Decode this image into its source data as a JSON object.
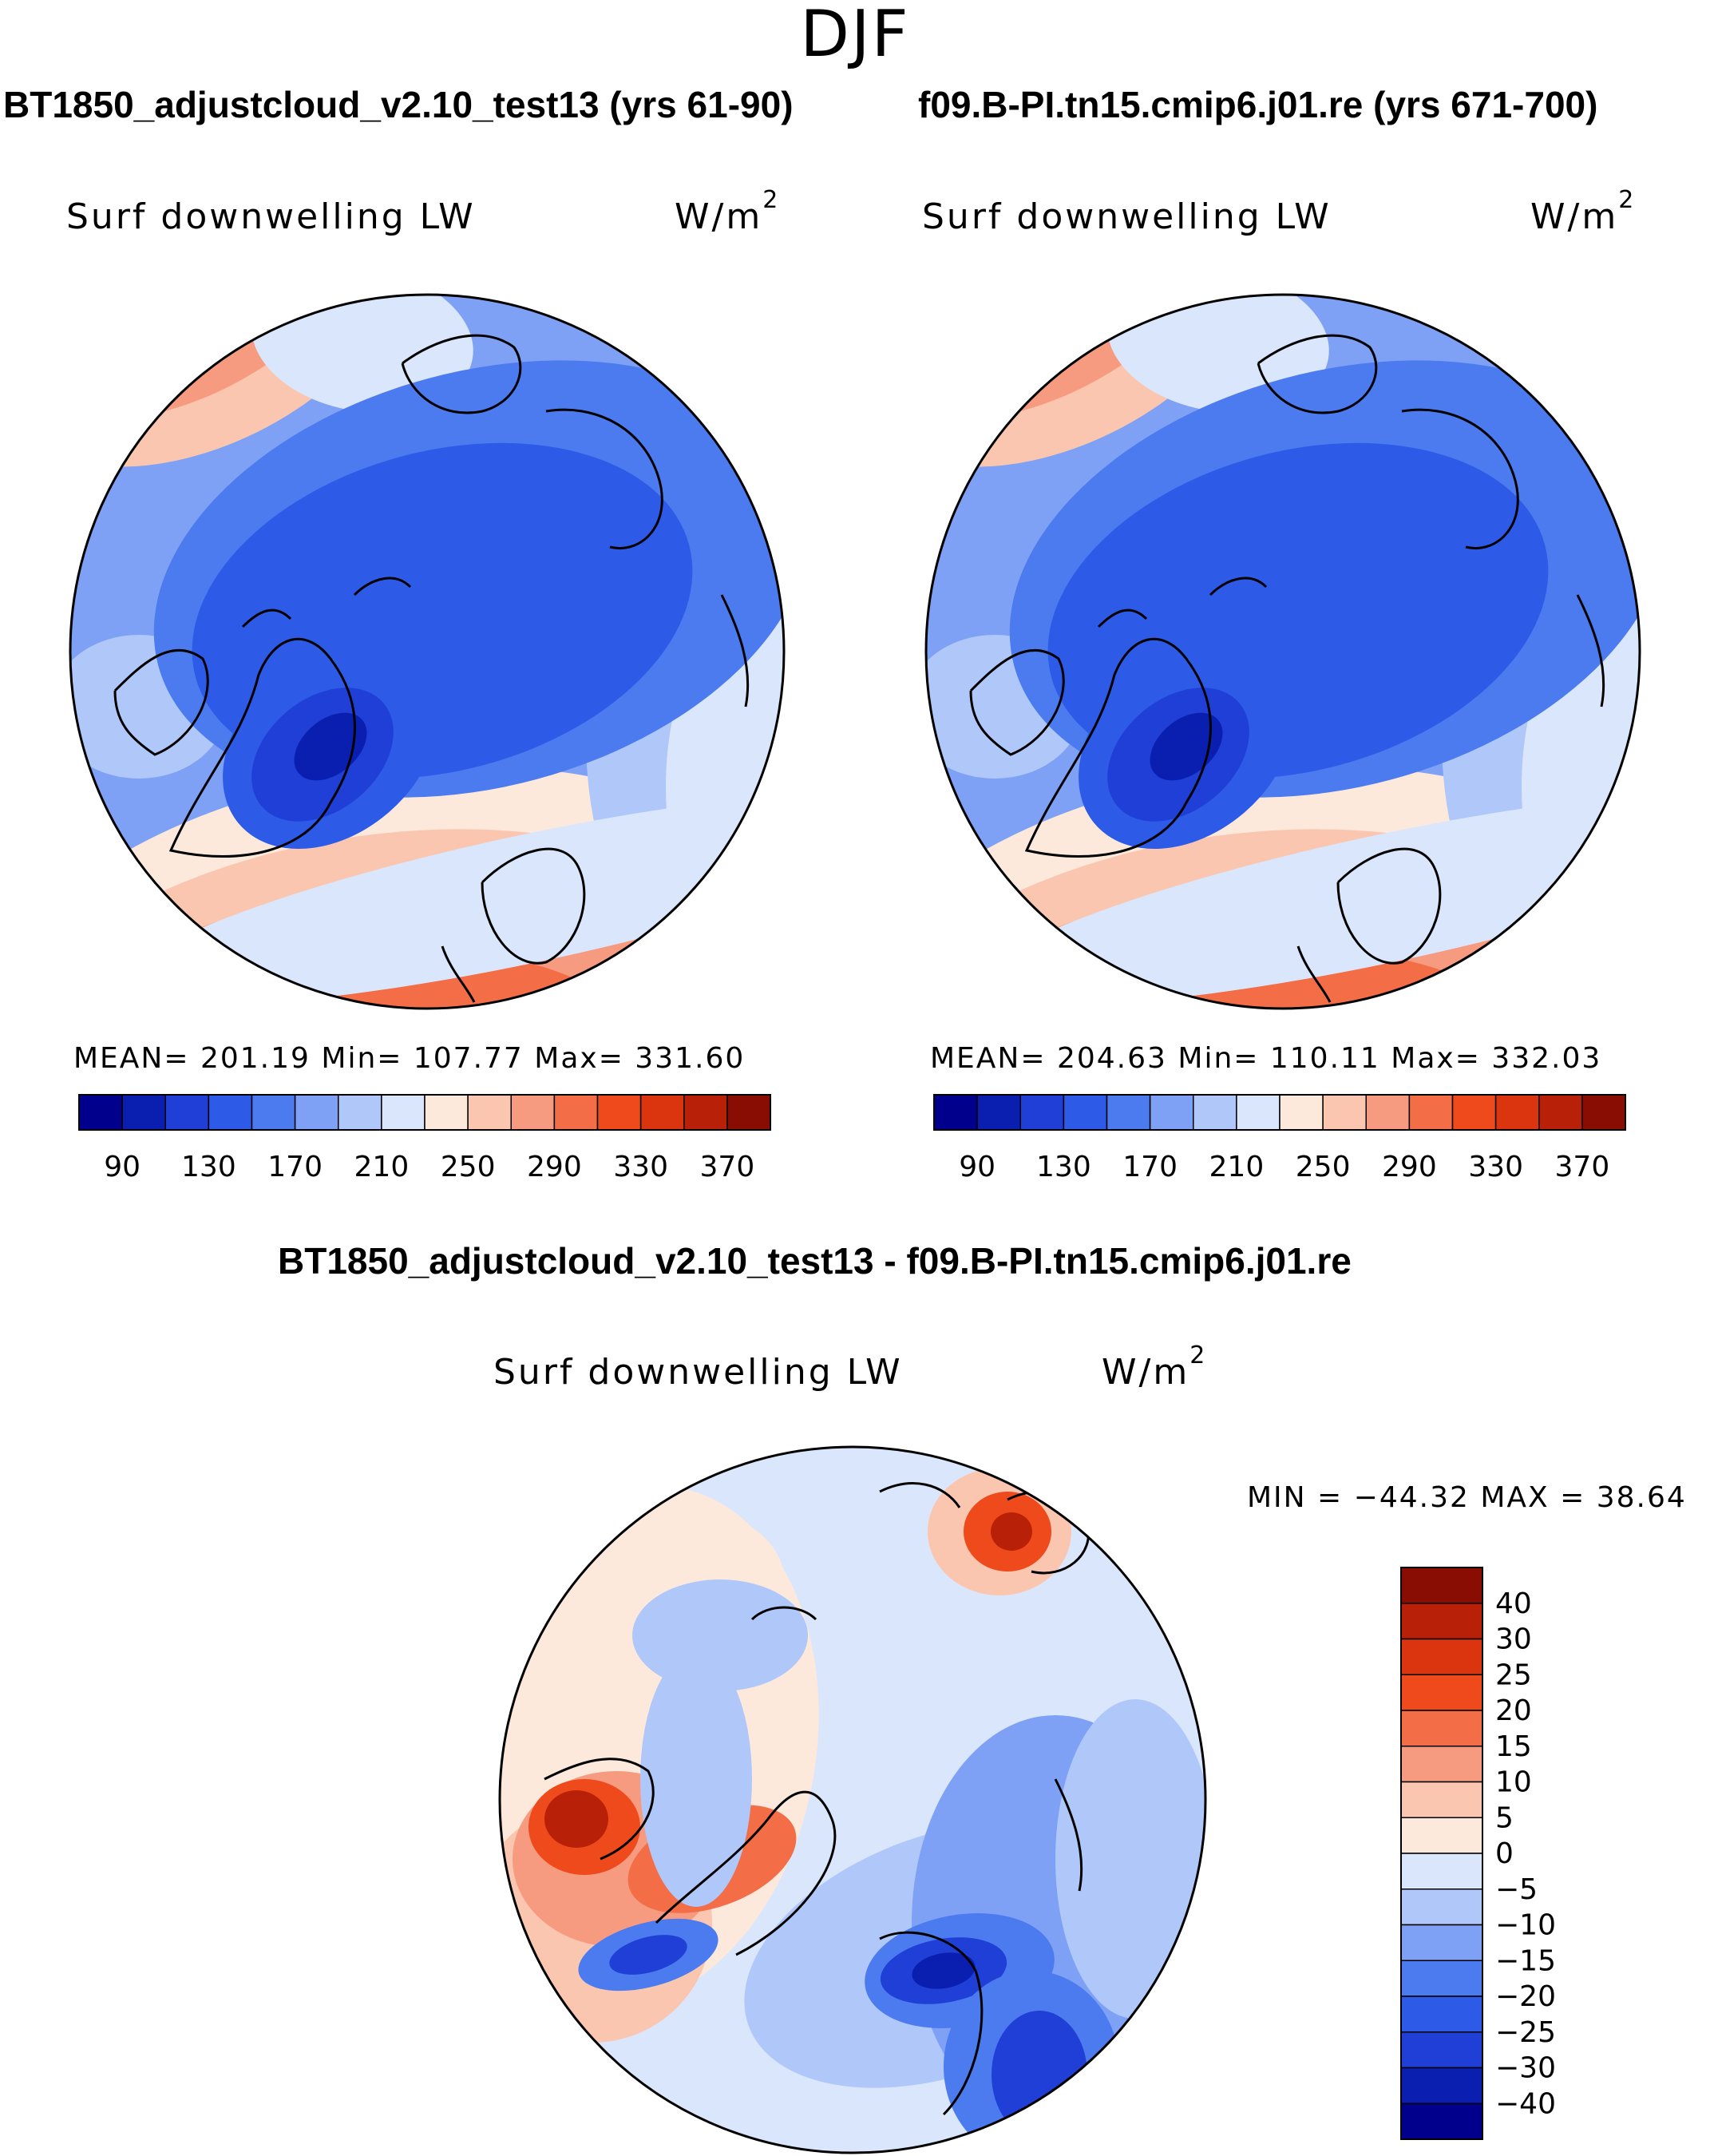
{
  "season": "DJF",
  "panels": [
    {
      "id": "test",
      "case_title": "BT1850_adjustcloud_v2.10_test13 (yrs 61-90)",
      "var_label": "Surf downwelling LW",
      "units": "W/m",
      "units_sup": "2",
      "stats": "MEAN= 201.19   Min= 107.77   Max= 331.60"
    },
    {
      "id": "control",
      "case_title": "f09.B-PI.tn15.cmip6.j01.re (yrs 671-700)",
      "var_label": "Surf downwelling LW",
      "units": "W/m",
      "units_sup": "2",
      "stats": "MEAN= 204.63   Min= 110.11   Max= 332.03"
    }
  ],
  "diff": {
    "title": "BT1850_adjustcloud_v2.10_test13 - f09.B-PI.tn15.cmip6.j01.re",
    "var_label": "Surf downwelling LW",
    "units": "W/m",
    "units_sup": "2",
    "stats": "MIN = −44.32 MAX =   38.64"
  },
  "colors": {
    "abs_scale": [
      "#00008c",
      "#0a1fb0",
      "#1f3fd6",
      "#2e5ae8",
      "#4b7bef",
      "#7ea1f5",
      "#b0c7fa",
      "#dae6fc",
      "#fde9dc",
      "#fbc6b0",
      "#f79b80",
      "#f36d47",
      "#ee4a1c",
      "#db3510",
      "#b82108",
      "#8a0d03"
    ],
    "diff_scale": [
      "#8a0d03",
      "#b82108",
      "#db3510",
      "#ee4a1c",
      "#f36d47",
      "#f79b80",
      "#fbc6b0",
      "#fde9dc",
      "#dae6fc",
      "#b0c7fa",
      "#7ea1f5",
      "#4b7bef",
      "#2e5ae8",
      "#1f3fd6",
      "#0a1fb0",
      "#00008c"
    ]
  },
  "chart_data": [
    {
      "type": "heatmap",
      "title": "BT1850_adjustcloud_v2.10_test13 (yrs 61-90)",
      "variable": "Surf downwelling LW",
      "units": "W/m2",
      "projection": "north polar stereographic",
      "season": "DJF",
      "mean": 201.19,
      "min": 107.77,
      "max": 331.6,
      "colorbar_levels": [
        90,
        110,
        130,
        150,
        170,
        190,
        210,
        230,
        250,
        270,
        290,
        310,
        330,
        350,
        370
      ],
      "colorbar_tick_labels": [
        "90",
        "130",
        "170",
        "210",
        "250",
        "290",
        "330",
        "370"
      ]
    },
    {
      "type": "heatmap",
      "title": "f09.B-PI.tn15.cmip6.j01.re (yrs 671-700)",
      "variable": "Surf downwelling LW",
      "units": "W/m2",
      "projection": "north polar stereographic",
      "season": "DJF",
      "mean": 204.63,
      "min": 110.11,
      "max": 332.03,
      "colorbar_levels": [
        90,
        110,
        130,
        150,
        170,
        190,
        210,
        230,
        250,
        270,
        290,
        310,
        330,
        350,
        370
      ],
      "colorbar_tick_labels": [
        "90",
        "130",
        "170",
        "210",
        "250",
        "290",
        "330",
        "370"
      ]
    },
    {
      "type": "heatmap",
      "title": "BT1850_adjustcloud_v2.10_test13 - f09.B-PI.tn15.cmip6.j01.re",
      "variable": "Surf downwelling LW",
      "units": "W/m2",
      "projection": "north polar stereographic",
      "season": "DJF",
      "min": -44.32,
      "max": 38.64,
      "colorbar_levels": [
        40,
        35,
        30,
        25,
        20,
        15,
        10,
        5,
        0,
        -5,
        -10,
        -15,
        -20,
        -25,
        -30,
        -35,
        -40
      ],
      "colorbar_tick_labels": [
        "40",
        "30",
        "25",
        "20",
        "15",
        "10",
        "5",
        "0",
        "−5",
        "−10",
        "−15",
        "−20",
        "−25",
        "−30",
        "−40"
      ]
    }
  ]
}
